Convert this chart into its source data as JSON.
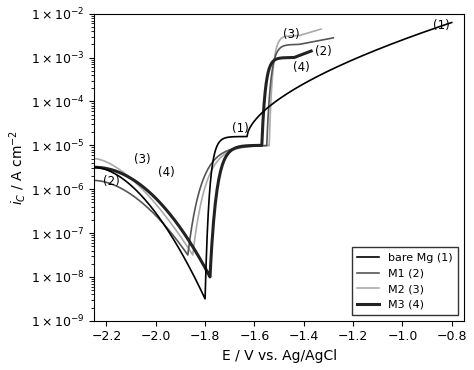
{
  "xlabel": "E / V vs. Ag/AgCl",
  "ylabel": "i_C / A cm^-2",
  "xlim": [
    -2.25,
    -0.75
  ],
  "ylim_log": [
    -9,
    -2
  ],
  "xticks": [
    -2.2,
    -2.0,
    -1.8,
    -1.6,
    -1.4,
    -1.2,
    -1.0,
    -0.8
  ],
  "legend": [
    {
      "label": "bare Mg (1)",
      "color": "#000000",
      "lw": 1.2
    },
    {
      "label": "M1 (2)",
      "color": "#555555",
      "lw": 1.2
    },
    {
      "label": "M2 (3)",
      "color": "#aaaaaa",
      "lw": 1.2
    },
    {
      "label": "M3 (4)",
      "color": "#222222",
      "lw": 2.2
    }
  ]
}
